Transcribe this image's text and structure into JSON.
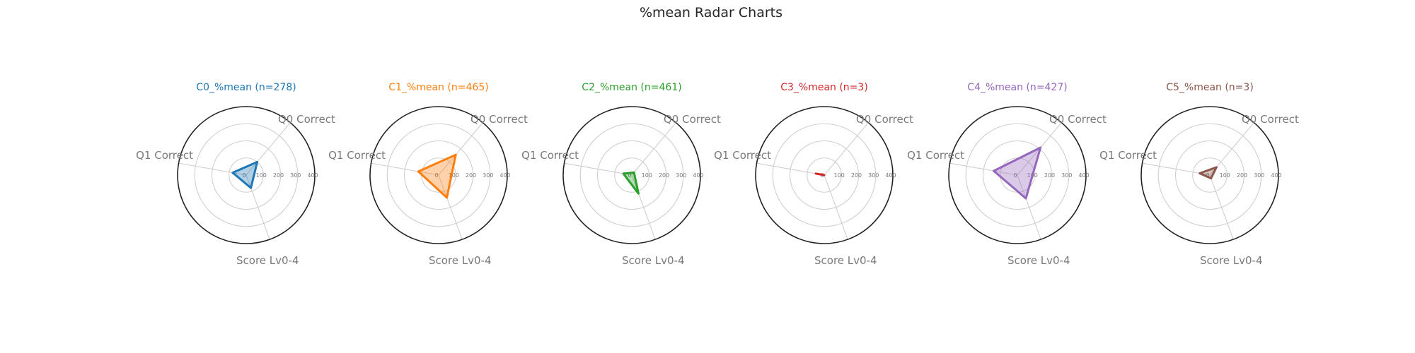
{
  "page": {
    "title": "%mean Radar Charts"
  },
  "chart_data": [
    {
      "type": "radar",
      "title": "C0_%mean (n=278)",
      "color": "#1f77b4",
      "axes": [
        "Q0 Correct",
        "Q1 Correct",
        "Score Lv0-4"
      ],
      "rticks": [
        0,
        100,
        200,
        300,
        400
      ],
      "rlim": [
        0,
        400
      ],
      "values": [
        100,
        80,
        80
      ]
    },
    {
      "type": "radar",
      "title": "C1_%mean (n=465)",
      "color": "#ff7f0e",
      "axes": [
        "Q0 Correct",
        "Q1 Correct",
        "Score Lv0-4"
      ],
      "rticks": [
        0,
        100,
        200,
        300,
        400
      ],
      "rlim": [
        0,
        400
      ],
      "values": [
        155,
        120,
        140
      ]
    },
    {
      "type": "radar",
      "title": "C2_%mean (n=461)",
      "color": "#2ca02c",
      "axes": [
        "Q0 Correct",
        "Q1 Correct",
        "Score Lv0-4"
      ],
      "rticks": [
        0,
        100,
        200,
        300,
        400
      ],
      "rlim": [
        0,
        400
      ],
      "values": [
        20,
        50,
        115
      ]
    },
    {
      "type": "radar",
      "title": "C3_%mean (n=3)",
      "color": "#d62728",
      "axes": [
        "Q0 Correct",
        "Q1 Correct",
        "Score Lv0-4"
      ],
      "rticks": [
        0,
        100,
        200,
        300,
        400
      ],
      "rlim": [
        0,
        400
      ],
      "values": [
        0,
        50,
        0
      ]
    },
    {
      "type": "radar",
      "title": "C4_%mean (n=427)",
      "color": "#9467bd",
      "axes": [
        "Q0 Correct",
        "Q1 Correct",
        "Score Lv0-4"
      ],
      "rticks": [
        0,
        100,
        200,
        300,
        400
      ],
      "rlim": [
        0,
        400
      ],
      "values": [
        210,
        140,
        145
      ]
    },
    {
      "type": "radar",
      "title": "C5_%mean (n=3)",
      "color": "#8c564b",
      "axes": [
        "Q0 Correct",
        "Q1 Correct",
        "Score Lv0-4"
      ],
      "rticks": [
        0,
        100,
        200,
        300,
        400
      ],
      "rlim": [
        0,
        400
      ],
      "values": [
        60,
        60,
        20
      ]
    }
  ]
}
